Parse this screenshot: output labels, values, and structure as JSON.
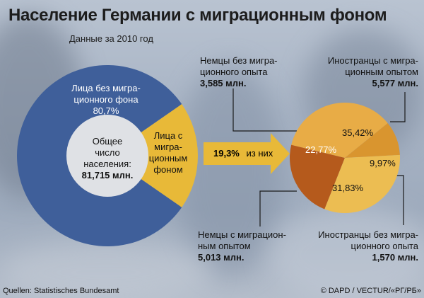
{
  "title": "Население Германии с миграционным фоном",
  "subtitle": "Данные за 2010 год",
  "total": {
    "line1": "Общее",
    "line2": "число",
    "line3": "населения:",
    "value": "81,715 млн."
  },
  "arrow": {
    "value": "19,3%",
    "text": "из них"
  },
  "colors": {
    "donut_blue": "#3f5f9a",
    "donut_yellow": "#e8b938",
    "pie_dark": "#b55a1c",
    "pie_orange": "#d9952f",
    "pie_light": "#e8ac46",
    "pie_yellow": "#ecbd52"
  },
  "chart_data": [
    {
      "type": "pie",
      "categories": [
        "Лица без миграционного фона",
        "Лица с миграционным фоном"
      ],
      "values": [
        80.7,
        19.3
      ],
      "labels": {
        "without": {
          "line1": "Лица без мигра-",
          "line2": "ционного фона",
          "pct": "80,7%"
        },
        "with": {
          "line1": "Лица с",
          "line2": "мигра-",
          "line3": "ционным",
          "line4": "фоном"
        }
      }
    },
    {
      "type": "pie",
      "categories": [
        "Немцы без миграционного опыта",
        "Иностранцы с миграционным опытом",
        "Иностранцы без миграционного опыта",
        "Немцы с миграционным опытом"
      ],
      "values": [
        22.77,
        35.42,
        9.97,
        31.83
      ],
      "pct_labels": [
        "22,77%",
        "35,42%",
        "9,97%",
        "31,83%"
      ],
      "callouts": {
        "de_without": {
          "line1": "Немцы без мигра-",
          "line2": "ционного опыта",
          "value": "3,585 млн."
        },
        "foreign_with": {
          "line1": "Иностранцы с мигра-",
          "line2": "ционным опытом",
          "value": "5,577 млн."
        },
        "de_with": {
          "line1": "Немцы с миграцион-",
          "line2": "ным опытом",
          "value": "5,013 млн."
        },
        "foreign_without": {
          "line1": "Иностранцы без мигра-",
          "line2": "ционного опыта",
          "value": "1,570 млн."
        }
      }
    }
  ],
  "footer": {
    "source": "Quellen: Statistisches Bundesamt",
    "credit": "© DAPD / VECTUR/«РГ/РБ»"
  }
}
